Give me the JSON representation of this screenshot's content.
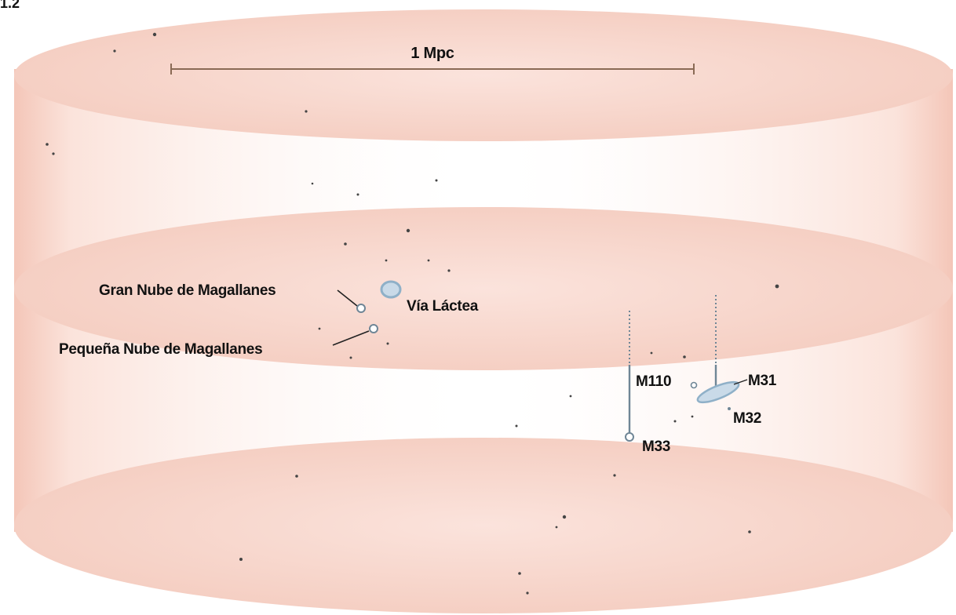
{
  "figure": {
    "number": "1.2",
    "scale_label": "1 Mpc"
  },
  "labels": {
    "lmc": "Gran Nube de Magallanes",
    "smc": "Pequeña Nube de Magallanes",
    "milky_way": "Vía Láctea",
    "m110": "M110",
    "m31": "M31",
    "m32": "M32",
    "m33": "M33"
  },
  "colors": {
    "disk_fill": "#f6d2c8",
    "disk_edge": "#f0b8a8",
    "scale_bar": "#8a6a55",
    "galaxy_blue": "#8fb0c8",
    "drop_line": "#6f8696",
    "star": "#444444"
  }
}
